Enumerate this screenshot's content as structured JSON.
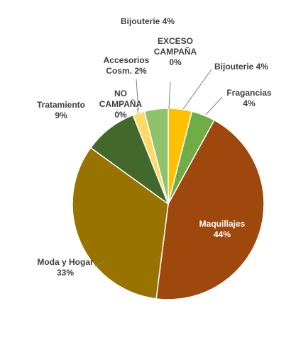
{
  "chart_data": {
    "type": "pie",
    "title": "",
    "legend": "none",
    "slices": [
      {
        "name": "EXCESO CAMPAÑA",
        "value": 0,
        "label_lines": [
          "EXCESO",
          "CAMPAÑA",
          "0%"
        ],
        "color": "#a9d18e"
      },
      {
        "name": "Bijouterie",
        "value": 4,
        "label_lines": [
          "Bijouterie 4%"
        ],
        "color": "#ffc000"
      },
      {
        "name": "Fragancias",
        "value": 4,
        "label_lines": [
          "Fragancias",
          "4%"
        ],
        "color": "#70ad47"
      },
      {
        "name": "Maquillajes",
        "value": 44,
        "label_lines": [
          "Maquillajes",
          "44%"
        ],
        "color": "#9e480e"
      },
      {
        "name": "Moda y Hogar",
        "value": 33,
        "label_lines": [
          "Moda y Hogar",
          "33%"
        ],
        "color": "#997300"
      },
      {
        "name": "Tratamiento",
        "value": 9,
        "label_lines": [
          "Tratamiento",
          "9%"
        ],
        "color": "#43682b"
      },
      {
        "name": "NO CAMPAÑA",
        "value": 0,
        "label_lines": [
          "NO",
          "CAMPAÑA",
          "0%"
        ],
        "color": "#264478"
      },
      {
        "name": "Accesorios Cosm.",
        "value": 2,
        "label_lines": [
          "Accesorios",
          "Cosm. 2%"
        ],
        "color": "#ffd966"
      },
      {
        "name": "Bijouterie",
        "value": 4,
        "label_lines": [
          "Bijouterie 4%"
        ],
        "color": "#8fc36b"
      }
    ]
  }
}
